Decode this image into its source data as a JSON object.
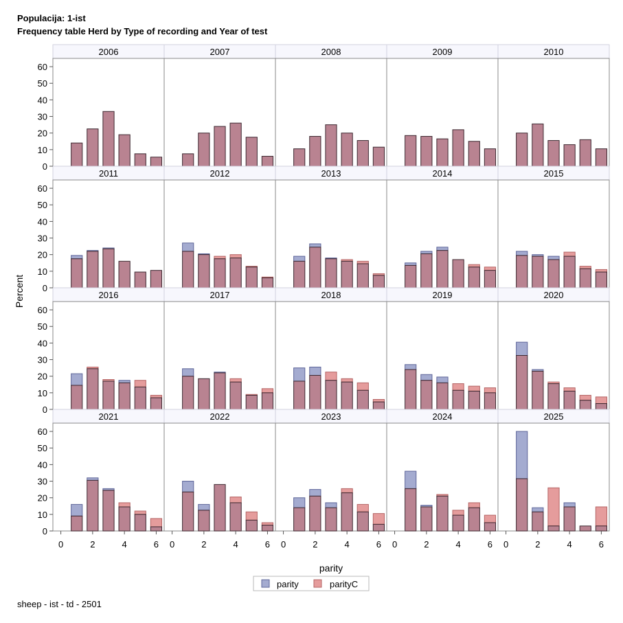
{
  "title_line1": "Populacija: 1-ist",
  "title_line2": "Frequency table Herd by Type of recording and Year of test",
  "footnote": "sheep - ist - td - 2501",
  "colors": {
    "parity_fill": "#a4abd0",
    "parity_stroke": "#5d6598",
    "parityC_fill": "#e59c9c",
    "parityC_stroke": "#b46464",
    "overlap_stroke": "#3c2830",
    "header_fill": "#f7f7fd",
    "frame": "#8a8a8a"
  },
  "chart_data": {
    "type": "bar",
    "layout": "panel 5x4",
    "xlabel": "parity",
    "ylabel": "Percent",
    "xlim": [
      -0.5,
      6.5
    ],
    "ylim": [
      0,
      65
    ],
    "xticks": [
      "0",
      "2",
      "4",
      "6"
    ],
    "yticks": [
      "0",
      "10",
      "20",
      "30",
      "40",
      "50",
      "60"
    ],
    "categories": [
      1,
      2,
      3,
      4,
      5,
      6
    ],
    "bar_width": 0.7,
    "legend": [
      "parity",
      "parityC"
    ],
    "panels": [
      {
        "year": "2006",
        "parity": [
          14,
          22.5,
          33,
          19,
          7.5,
          5.5
        ],
        "parityC": [
          14,
          22.5,
          33,
          19,
          7.5,
          5.5
        ]
      },
      {
        "year": "2007",
        "parity": [
          7.5,
          20,
          24,
          26,
          17.5,
          6
        ],
        "parityC": [
          7.5,
          20,
          24,
          26,
          17.5,
          6
        ]
      },
      {
        "year": "2008",
        "parity": [
          10.5,
          18,
          25,
          20,
          15.5,
          11.5
        ],
        "parityC": [
          10.5,
          18,
          25,
          20,
          15.5,
          11.5
        ]
      },
      {
        "year": "2009",
        "parity": [
          18.5,
          18,
          16.5,
          22,
          15,
          10.5
        ],
        "parityC": [
          18.5,
          18,
          16.5,
          22,
          15,
          10.5
        ]
      },
      {
        "year": "2010",
        "parity": [
          20,
          25.5,
          15.5,
          13,
          16,
          10.5
        ],
        "parityC": [
          20,
          25.5,
          15.5,
          13,
          16,
          10.5
        ]
      },
      {
        "year": "2011",
        "parity": [
          19.5,
          22.5,
          24,
          16,
          9.5,
          10.5
        ],
        "parityC": [
          17.5,
          22,
          23.5,
          16,
          9.5,
          10.5
        ]
      },
      {
        "year": "2012",
        "parity": [
          27,
          20.5,
          17.5,
          18,
          12.5,
          6
        ],
        "parityC": [
          22,
          20,
          19,
          20,
          13,
          6.5
        ]
      },
      {
        "year": "2013",
        "parity": [
          19,
          26.5,
          18,
          16,
          14.5,
          7.5
        ],
        "parityC": [
          16,
          24.5,
          17.5,
          17,
          16,
          8.5
        ]
      },
      {
        "year": "2014",
        "parity": [
          15,
          22,
          24.5,
          17,
          12.5,
          10.5
        ],
        "parityC": [
          13.5,
          20.5,
          22.5,
          17,
          14,
          12.5
        ]
      },
      {
        "year": "2015",
        "parity": [
          22,
          20,
          19,
          19,
          11.5,
          9.5
        ],
        "parityC": [
          19.5,
          19,
          17,
          21.5,
          13,
          11
        ]
      },
      {
        "year": "2016",
        "parity": [
          21.5,
          24.5,
          17,
          17.5,
          13.5,
          7
        ],
        "parityC": [
          14.5,
          25.5,
          18,
          16,
          17.5,
          8.5
        ]
      },
      {
        "year": "2017",
        "parity": [
          24.5,
          18.5,
          22.5,
          16.5,
          8.5,
          10
        ],
        "parityC": [
          20,
          18.5,
          22,
          18.5,
          9,
          12.5
        ]
      },
      {
        "year": "2018",
        "parity": [
          25,
          25.5,
          17.5,
          16.5,
          11.5,
          4.5
        ],
        "parityC": [
          17,
          20.5,
          22.5,
          18.5,
          16,
          6
        ]
      },
      {
        "year": "2019",
        "parity": [
          27,
          21,
          19.5,
          11.5,
          11,
          10
        ],
        "parityC": [
          24,
          17.5,
          16,
          15.5,
          14,
          13
        ]
      },
      {
        "year": "2020",
        "parity": [
          40.5,
          24,
          15.5,
          11,
          5.5,
          3.5
        ],
        "parityC": [
          32.5,
          23,
          16.5,
          13,
          8.5,
          7.5
        ]
      },
      {
        "year": "2021",
        "parity": [
          16,
          32,
          25.5,
          14.5,
          10,
          2.5
        ],
        "parityC": [
          9,
          30.5,
          24.5,
          17,
          12,
          7.5
        ]
      },
      {
        "year": "2022",
        "parity": [
          30,
          16,
          28,
          17,
          6.5,
          3.5
        ],
        "parityC": [
          23.5,
          12.5,
          28,
          20.5,
          11.5,
          5
        ]
      },
      {
        "year": "2023",
        "parity": [
          20,
          25,
          17,
          23,
          11.5,
          4
        ],
        "parityC": [
          14,
          21,
          14,
          25.5,
          16,
          10.5
        ]
      },
      {
        "year": "2024",
        "parity": [
          36,
          15.5,
          21,
          9.5,
          14,
          5
        ],
        "parityC": [
          25.5,
          14.5,
          22,
          12.5,
          17,
          9.5
        ]
      },
      {
        "year": "2025",
        "parity": [
          60,
          14,
          3,
          17,
          3,
          3
        ],
        "parityC": [
          31.5,
          11.5,
          26,
          14.5,
          3,
          14.5
        ]
      }
    ]
  }
}
